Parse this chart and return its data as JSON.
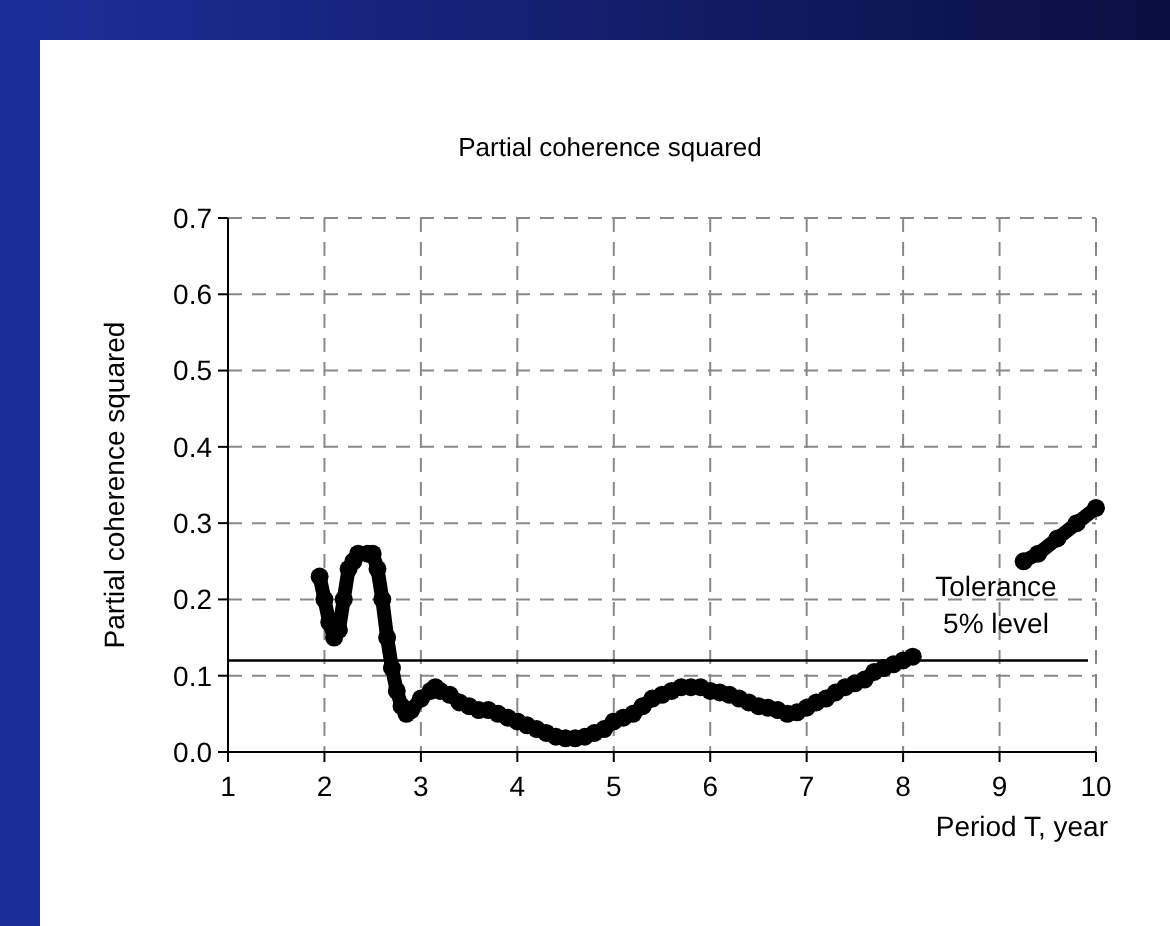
{
  "chart_data": {
    "type": "line",
    "title": "Partial coherence squared",
    "xlabel": "Period T, year",
    "ylabel": "Partial coherence squared",
    "xlim": [
      1,
      10
    ],
    "xticks": [
      1,
      2,
      3,
      4,
      5,
      6,
      7,
      8,
      9,
      10
    ],
    "ylim": [
      0,
      0.7
    ],
    "yticks": [
      {
        "value": 0,
        "label": "0.0"
      },
      {
        "value": 0.1,
        "label": "0.1"
      },
      {
        "value": 0.2,
        "label": "0.2"
      },
      {
        "value": 0.3,
        "label": "0.3"
      },
      {
        "value": 0.4,
        "label": "0.4"
      },
      {
        "value": 0.5,
        "label": "0.5"
      },
      {
        "value": 0.6,
        "label": "0.6"
      },
      {
        "value": 0.7,
        "label": "0.7"
      }
    ],
    "grid": true,
    "marker": "circle",
    "line_style": "solid",
    "series": [
      {
        "color": "#000000",
        "x": [
          1.95,
          2.0,
          2.05,
          2.1,
          2.15,
          2.2,
          2.25,
          2.3,
          2.35,
          2.45,
          2.5,
          2.55,
          2.6,
          2.65,
          2.7,
          2.75,
          2.8,
          2.85,
          2.9,
          3.0,
          3.1,
          3.15,
          3.2,
          3.3,
          3.4,
          3.5,
          3.6,
          3.7,
          3.8,
          3.9,
          4.0,
          4.1,
          4.2,
          4.3,
          4.4,
          4.5,
          4.6,
          4.7,
          4.8,
          4.9,
          5.0,
          5.1,
          5.2,
          5.3,
          5.4,
          5.5,
          5.6,
          5.7,
          5.8,
          5.9,
          6.0,
          6.1,
          6.2,
          6.3,
          6.4,
          6.5,
          6.6,
          6.7,
          6.8,
          6.9,
          7.0,
          7.1,
          7.2,
          7.3,
          7.4,
          7.5,
          7.6,
          7.7,
          7.8,
          7.9,
          8.0,
          8.1,
          8.6,
          9.25,
          9.4,
          9.6,
          9.8,
          10.0
        ],
        "values": [
          0.23,
          0.2,
          0.17,
          0.15,
          0.16,
          0.2,
          0.24,
          0.25,
          0.26,
          0.26,
          0.26,
          0.24,
          0.2,
          0.15,
          0.11,
          0.08,
          0.06,
          0.05,
          0.055,
          0.07,
          0.08,
          0.085,
          0.08,
          0.075,
          0.065,
          0.06,
          0.055,
          0.055,
          0.05,
          0.045,
          0.04,
          0.035,
          0.03,
          0.025,
          0.02,
          0.018,
          0.018,
          0.02,
          0.025,
          0.03,
          0.04,
          0.045,
          0.05,
          0.06,
          0.07,
          0.075,
          0.08,
          0.085,
          0.085,
          0.085,
          0.08,
          0.078,
          0.075,
          0.07,
          0.065,
          0.06,
          0.058,
          0.055,
          0.05,
          0.052,
          0.058,
          0.065,
          0.07,
          0.078,
          0.085,
          0.09,
          0.095,
          0.105,
          0.11,
          0.115,
          0.12,
          0.125,
          null,
          0.25,
          0.26,
          0.28,
          0.3,
          0.32
        ]
      }
    ],
    "ref_lines": [
      {
        "axis": "y",
        "value": 0.12,
        "label": "Tolerance 5% level",
        "color": "#000000"
      }
    ]
  }
}
